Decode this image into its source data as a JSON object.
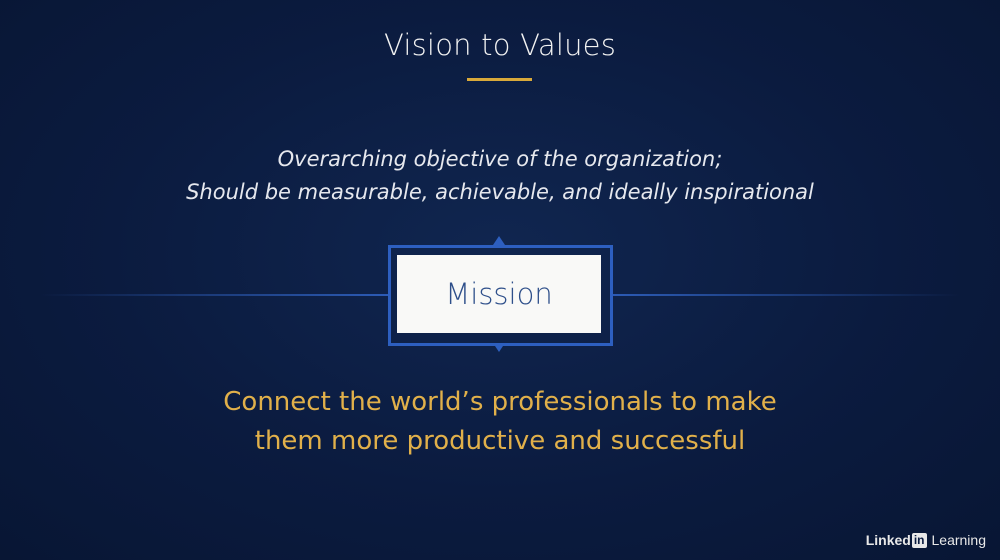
{
  "slide": {
    "title": "Vision to Values",
    "description_lines": [
      "Overarching objective of the organization;",
      "Should be measurable, achievable, and ideally inspirational"
    ],
    "box_label": "Mission",
    "statement_lines": [
      "Connect the world’s professionals to make",
      "them more productive and successful"
    ]
  },
  "watermark": {
    "brand_linked": "Linked",
    "brand_in": "in",
    "brand_learning": "Learning"
  },
  "colors": {
    "background": "#0b1b3f",
    "accent_gold": "#d9a93a",
    "statement_text": "#e1b04a",
    "frame_blue": "#2d5fc0",
    "box_text": "#2e4f8a"
  },
  "icons": [
    "arrow-up-icon",
    "arrow-down-icon",
    "linkedin-logo-icon"
  ]
}
